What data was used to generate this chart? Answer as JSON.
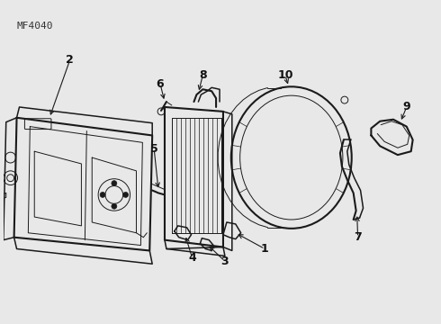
{
  "background_color": "#e8e8e8",
  "line_color": "#1a1a1a",
  "text_color": "#111111",
  "watermark": "MF4040",
  "figsize": [
    4.9,
    3.6
  ],
  "dpi": 100,
  "lw_main": 1.1,
  "lw_thin": 0.7,
  "lw_thick": 1.5
}
